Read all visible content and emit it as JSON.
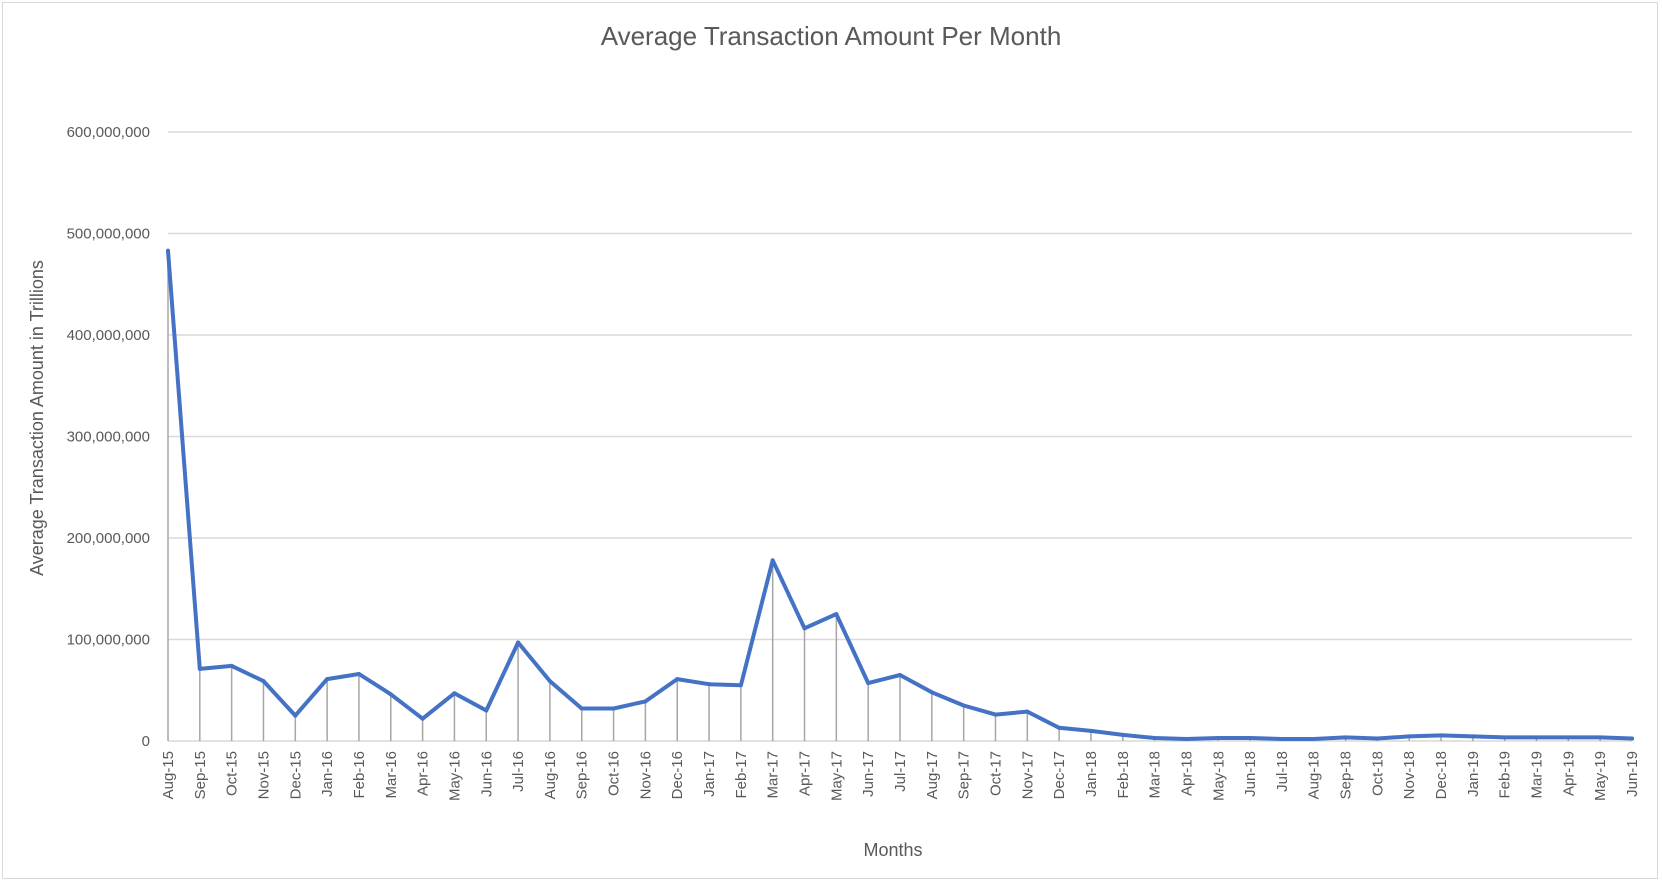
{
  "chart_data": {
    "type": "line",
    "title": "Average Transaction Amount Per Month",
    "xlabel": "Months",
    "ylabel": "Average Transaction Amount in Trillions",
    "ylim": [
      0,
      600000000
    ],
    "yticks": [
      0,
      100000000,
      200000000,
      300000000,
      400000000,
      500000000,
      600000000
    ],
    "ytick_labels": [
      "0",
      "100,000,000",
      "200,000,000",
      "300,000,000",
      "400,000,000",
      "500,000,000",
      "600,000,000"
    ],
    "grid": true,
    "legend": "none",
    "line_color": "#4472c4",
    "drop_line_color": "#a6a6a6",
    "categories": [
      "Aug-15",
      "Sep-15",
      "Oct-15",
      "Nov-15",
      "Dec-15",
      "Jan-16",
      "Feb-16",
      "Mar-16",
      "Apr-16",
      "May-16",
      "Jun-16",
      "Jul-16",
      "Aug-16",
      "Sep-16",
      "Oct-16",
      "Nov-16",
      "Dec-16",
      "Jan-17",
      "Feb-17",
      "Mar-17",
      "Apr-17",
      "May-17",
      "Jun-17",
      "Jul-17",
      "Aug-17",
      "Sep-17",
      "Oct-17",
      "Nov-17",
      "Dec-17",
      "Jan-18",
      "Feb-18",
      "Mar-18",
      "Apr-18",
      "May-18",
      "Jun-18",
      "Jul-18",
      "Aug-18",
      "Sep-18",
      "Oct-18",
      "Nov-18",
      "Dec-18",
      "Jan-19",
      "Feb-19",
      "Mar-19",
      "Apr-19",
      "May-19",
      "Jun-19"
    ],
    "values": [
      483000000,
      71000000,
      74000000,
      59000000,
      25000000,
      61000000,
      66000000,
      46000000,
      22000000,
      47000000,
      30000000,
      97000000,
      59000000,
      32000000,
      32000000,
      39000000,
      61000000,
      56000000,
      55000000,
      178000000,
      111000000,
      125000000,
      57000000,
      65000000,
      48000000,
      35000000,
      26000000,
      29000000,
      13000000,
      10000000,
      6000000,
      3000000,
      2000000,
      3000000,
      3000000,
      2000000,
      2000000,
      3500000,
      2500000,
      4500000,
      5500000,
      4500000,
      3500000,
      3500000,
      3500000,
      3500000,
      2500000
    ]
  }
}
